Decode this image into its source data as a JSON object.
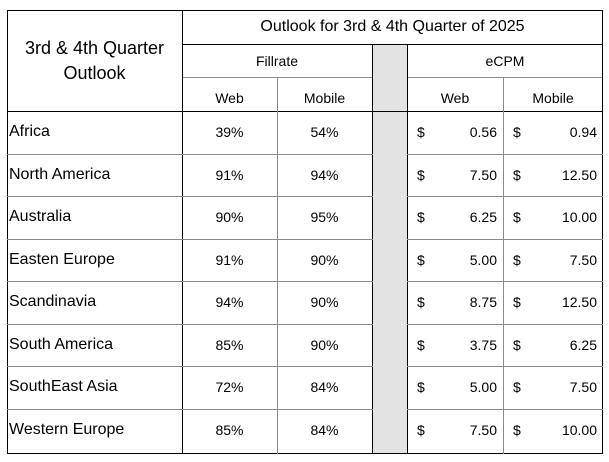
{
  "table": {
    "corner_title_line1": "3rd & 4th Quarter",
    "corner_title_line2": "Outlook",
    "header": "Outlook for 3rd & 4th Quarter of 2025",
    "groups": {
      "fillrate": "Fillrate",
      "ecpm": "eCPM"
    },
    "subheaders": {
      "web": "Web",
      "mobile": "Mobile"
    },
    "currency_symbol": "$",
    "rows": [
      {
        "region": "Africa",
        "fill_web": "39%",
        "fill_mobile": "54%",
        "ecpm_web": "0.56",
        "ecpm_mobile": "0.94"
      },
      {
        "region": "North America",
        "fill_web": "91%",
        "fill_mobile": "94%",
        "ecpm_web": "7.50",
        "ecpm_mobile": "12.50"
      },
      {
        "region": "Australia",
        "fill_web": "90%",
        "fill_mobile": "95%",
        "ecpm_web": "6.25",
        "ecpm_mobile": "10.00"
      },
      {
        "region": "Easten Europe",
        "fill_web": "91%",
        "fill_mobile": "90%",
        "ecpm_web": "5.00",
        "ecpm_mobile": "7.50"
      },
      {
        "region": "Scandinavia",
        "fill_web": "94%",
        "fill_mobile": "90%",
        "ecpm_web": "8.75",
        "ecpm_mobile": "12.50"
      },
      {
        "region": "South America",
        "fill_web": "85%",
        "fill_mobile": "90%",
        "ecpm_web": "3.75",
        "ecpm_mobile": "6.25"
      },
      {
        "region": "SouthEast Asia",
        "fill_web": "72%",
        "fill_mobile": "84%",
        "ecpm_web": "5.00",
        "ecpm_mobile": "7.50"
      },
      {
        "region": "Western Europe",
        "fill_web": "85%",
        "fill_mobile": "84%",
        "ecpm_web": "7.50",
        "ecpm_mobile": "10.00"
      }
    ]
  }
}
